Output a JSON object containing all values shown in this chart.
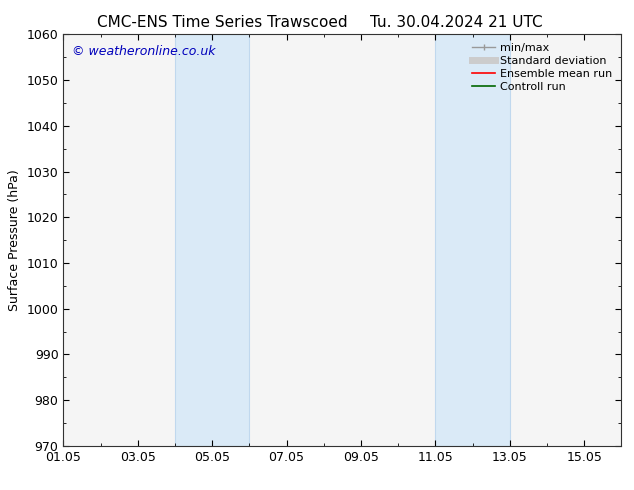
{
  "title_left": "CMC-ENS Time Series Trawscoed",
  "title_right": "Tu. 30.04.2024 21 UTC",
  "ylabel": "Surface Pressure (hPa)",
  "xlim": [
    0,
    15
  ],
  "ylim": [
    970,
    1060
  ],
  "yticks": [
    970,
    980,
    990,
    1000,
    1010,
    1020,
    1030,
    1040,
    1050,
    1060
  ],
  "xtick_labels": [
    "01.05",
    "03.05",
    "05.05",
    "07.05",
    "09.05",
    "11.05",
    "13.05",
    "15.05"
  ],
  "xtick_positions": [
    0,
    2,
    4,
    6,
    8,
    10,
    12,
    14
  ],
  "shaded_bands": [
    {
      "x_start": 3.0,
      "x_end": 5.0
    },
    {
      "x_start": 10.0,
      "x_end": 12.0
    }
  ],
  "shaded_color": "#daeaf7",
  "shaded_border_color": "#c0d8ee",
  "watermark_text": "© weatheronline.co.uk",
  "watermark_color": "#0000bb",
  "bg_color": "#ffffff",
  "plot_bg_color": "#f5f5f5",
  "tick_color": "#000000",
  "title_fontsize": 11,
  "axis_label_fontsize": 9,
  "tick_fontsize": 9,
  "watermark_fontsize": 9,
  "legend_fontsize": 8,
  "legend_items": [
    {
      "label": "min/max",
      "color": "#999999",
      "lw": 1.0
    },
    {
      "label": "Standard deviation",
      "color": "#cccccc",
      "lw": 5
    },
    {
      "label": "Ensemble mean run",
      "color": "#ff0000",
      "lw": 1.2
    },
    {
      "label": "Controll run",
      "color": "#006600",
      "lw": 1.2
    }
  ]
}
